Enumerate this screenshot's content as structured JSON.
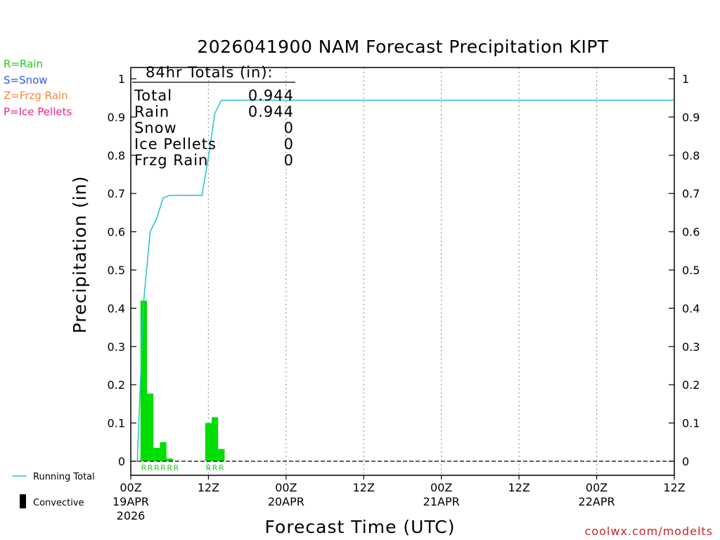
{
  "chart_data": {
    "type": "bar",
    "title": "2026041900 NAM Forecast Precipitation KIPT",
    "xlabel": "Forecast Time (UTC)",
    "ylabel": "Precipitation (in)",
    "ylim": [
      0,
      1.05
    ],
    "yticks": [
      0,
      0.1,
      0.2,
      0.3,
      0.4,
      0.5,
      0.6,
      0.7,
      0.8,
      0.9,
      1
    ],
    "ytick_labels": [
      "0",
      "0.1",
      "0.2",
      "0.3",
      "0.4",
      "0.5",
      "0.6",
      "0.7",
      "0.8",
      "0.9",
      "1"
    ],
    "x_unit": "forecast hour",
    "xlim": [
      0,
      84
    ],
    "xticks": [
      {
        "hour": 0,
        "label": "00Z",
        "date": "19APR",
        "year": "2026"
      },
      {
        "hour": 12,
        "label": "12Z",
        "date": "",
        "year": ""
      },
      {
        "hour": 24,
        "label": "00Z",
        "date": "20APR",
        "year": ""
      },
      {
        "hour": 36,
        "label": "12Z",
        "date": "",
        "year": ""
      },
      {
        "hour": 48,
        "label": "00Z",
        "date": "21APR",
        "year": ""
      },
      {
        "hour": 60,
        "label": "12Z",
        "date": "",
        "year": ""
      },
      {
        "hour": 72,
        "label": "00Z",
        "date": "22APR",
        "year": ""
      },
      {
        "hour": 84,
        "label": "12Z",
        "date": "",
        "year": ""
      }
    ],
    "gridlines_at_hours": [
      12,
      24,
      36,
      48,
      60,
      72
    ],
    "series": [
      {
        "name": "Rain",
        "kind": "bar",
        "color": "#00dd00",
        "bar_width_hours": 1,
        "points": [
          {
            "hour": 2,
            "value": 0.42,
            "ptype": "R"
          },
          {
            "hour": 3,
            "value": 0.177,
            "ptype": "R"
          },
          {
            "hour": 4,
            "value": 0.035,
            "ptype": "R"
          },
          {
            "hour": 5,
            "value": 0.05,
            "ptype": "R"
          },
          {
            "hour": 6,
            "value": 0.007,
            "ptype": "R"
          },
          {
            "hour": 7,
            "value": 0.0,
            "ptype": "R"
          },
          {
            "hour": 12,
            "value": 0.1,
            "ptype": "R"
          },
          {
            "hour": 13,
            "value": 0.115,
            "ptype": "R"
          },
          {
            "hour": 14,
            "value": 0.032,
            "ptype": "R"
          }
        ]
      },
      {
        "name": "Running Total",
        "kind": "line",
        "color": "#22c4c8",
        "x": [
          1,
          2,
          3,
          4,
          5,
          6,
          7,
          8,
          9,
          10,
          11,
          12,
          13,
          14,
          15,
          84
        ],
        "y": [
          0,
          0.42,
          0.6,
          0.635,
          0.688,
          0.695,
          0.695,
          0.695,
          0.695,
          0.695,
          0.695,
          0.795,
          0.91,
          0.944,
          0.944,
          0.944
        ]
      }
    ],
    "totals_box": {
      "title": "84hr Totals (in):",
      "rows": [
        {
          "label": "Total",
          "value": "0.944"
        },
        {
          "label": "Rain",
          "value": "0.944"
        },
        {
          "label": "Snow",
          "value": "0"
        },
        {
          "label": "Ice Pellets",
          "value": "0"
        },
        {
          "label": "Frzg Rain",
          "value": "0"
        }
      ]
    },
    "ptype_legend": [
      {
        "text": "R=Rain",
        "color": "#22cc22"
      },
      {
        "text": "S=Snow",
        "color": "#3355ee"
      },
      {
        "text": "Z=Frzg Rain",
        "color": "#f08a30"
      },
      {
        "text": "P=Ice Pellets",
        "color": "#ee2288"
      }
    ],
    "bottom_legend": {
      "running_total": "Running Total",
      "convective": "Convective"
    },
    "credit": "coolwx.com/modelts",
    "credit_color": "#cc2222"
  }
}
